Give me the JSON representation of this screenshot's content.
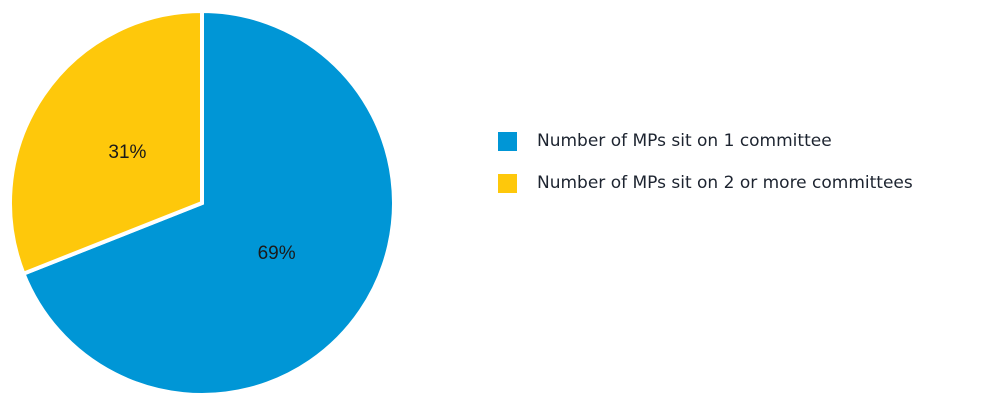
{
  "chart_data": {
    "type": "pie",
    "slices": [
      {
        "name": "Number of MPs sit on 1 committee",
        "value": 69,
        "label": "69%",
        "color": "#0096d6"
      },
      {
        "name": "Number of MPs sit on 2 or more committees",
        "value": 31,
        "label": "31%",
        "color": "#fec80b"
      }
    ],
    "start_angle_deg": 0,
    "direction": "clockwise",
    "legend": {
      "position": "right"
    },
    "separator_color": "#ffffff"
  }
}
